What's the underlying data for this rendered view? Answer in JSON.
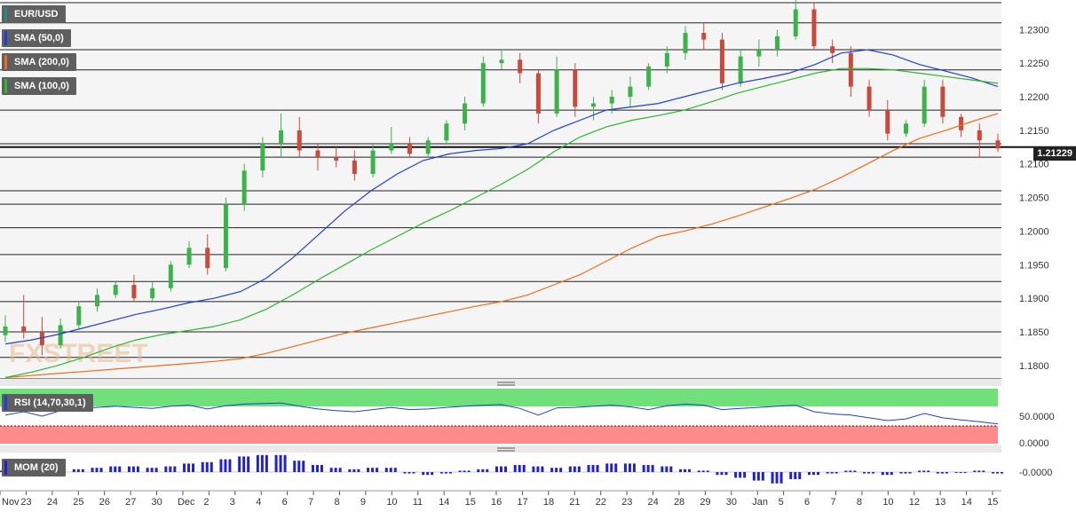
{
  "chart_data": [
    {
      "type": "line",
      "title": "EUR/USD",
      "subtitle": "",
      "series": [
        {
          "name": "SMA (50,0)",
          "color": "#1f3fd8",
          "values": [
            1.1832,
            1.1838,
            1.1846,
            1.1856,
            1.1866,
            1.1876,
            1.1884,
            1.1893,
            1.19,
            1.191,
            1.193,
            1.196,
            1.1995,
            1.203,
            1.206,
            1.2085,
            1.2105,
            1.2115,
            1.212,
            1.2123,
            1.213,
            1.215,
            1.2165,
            1.218,
            1.2185,
            1.219,
            1.22,
            1.221,
            1.222,
            1.2227,
            1.2235,
            1.2248,
            1.2265,
            1.227,
            1.2262,
            1.2248,
            1.2238,
            1.2228,
            1.2215
          ]
        },
        {
          "name": "SMA (200,0)",
          "color": "#ef6c1a",
          "values": [
            1.1782,
            1.1785,
            1.1788,
            1.1791,
            1.1794,
            1.1797,
            1.18,
            1.1803,
            1.1806,
            1.181,
            1.1818,
            1.1828,
            1.1838,
            1.1848,
            1.1856,
            1.1864,
            1.1872,
            1.188,
            1.1888,
            1.1895,
            1.1905,
            1.192,
            1.1935,
            1.1955,
            1.1975,
            1.1992,
            1.2,
            1.201,
            1.2022,
            1.2035,
            1.2048,
            1.2062,
            1.208,
            1.21,
            1.212,
            1.2138,
            1.215,
            1.2163,
            1.2175
          ]
        },
        {
          "name": "SMA (100,0)",
          "color": "#2fb52f",
          "values": [
            1.1782,
            1.179,
            1.18,
            1.1812,
            1.1826,
            1.1838,
            1.1846,
            1.1852,
            1.1858,
            1.1868,
            1.1884,
            1.1905,
            1.1928,
            1.195,
            1.1972,
            1.1992,
            1.2012,
            1.203,
            1.205,
            1.207,
            1.2092,
            1.2118,
            1.214,
            1.2155,
            1.2165,
            1.2172,
            1.218,
            1.2192,
            1.2205,
            1.2215,
            1.2225,
            1.2235,
            1.2242,
            1.2242,
            1.224,
            1.2235,
            1.223,
            1.2225,
            1.222
          ]
        }
      ],
      "candles": [
        [
          1.1845,
          1.1875,
          1.1835,
          1.1858
        ],
        [
          1.1858,
          1.1905,
          1.184,
          1.185
        ],
        [
          1.185,
          1.1872,
          1.1815,
          1.183
        ],
        [
          1.183,
          1.187,
          1.1825,
          1.186
        ],
        [
          1.186,
          1.1895,
          1.1855,
          1.1888
        ],
        [
          1.1888,
          1.1915,
          1.188,
          1.1905
        ],
        [
          1.1905,
          1.1925,
          1.19,
          1.192
        ],
        [
          1.192,
          1.1935,
          1.1895,
          1.19
        ],
        [
          1.19,
          1.1925,
          1.1895,
          1.1915
        ],
        [
          1.1915,
          1.1955,
          1.191,
          1.195
        ],
        [
          1.195,
          1.1985,
          1.1945,
          1.1975
        ],
        [
          1.1975,
          1.1995,
          1.1935,
          1.1945
        ],
        [
          1.1945,
          1.205,
          1.194,
          1.204
        ],
        [
          1.204,
          1.21,
          1.203,
          1.209
        ],
        [
          1.209,
          1.214,
          1.208,
          1.213
        ],
        [
          1.213,
          1.2175,
          1.211,
          1.215
        ],
        [
          1.215,
          1.217,
          1.211,
          1.212
        ],
        [
          1.212,
          1.213,
          1.209,
          1.211
        ],
        [
          1.211,
          1.2125,
          1.2095,
          1.2105
        ],
        [
          1.2105,
          1.212,
          1.2075,
          1.2085
        ],
        [
          1.2085,
          1.213,
          1.208,
          1.212
        ],
        [
          1.212,
          1.2155,
          1.2115,
          1.213
        ],
        [
          1.213,
          1.214,
          1.211,
          1.2115
        ],
        [
          1.2115,
          1.214,
          1.211,
          1.2135
        ],
        [
          1.2135,
          1.2165,
          1.213,
          1.216
        ],
        [
          1.216,
          1.22,
          1.215,
          1.219
        ],
        [
          1.219,
          1.226,
          1.2185,
          1.225
        ],
        [
          1.225,
          1.227,
          1.224,
          1.2255
        ],
        [
          1.2255,
          1.2265,
          1.222,
          1.2235
        ],
        [
          1.2235,
          1.224,
          1.216,
          1.2175
        ],
        [
          1.2175,
          1.226,
          1.217,
          1.224
        ],
        [
          1.224,
          1.225,
          1.217,
          1.2185
        ],
        [
          1.2185,
          1.22,
          1.2165,
          1.219
        ],
        [
          1.219,
          1.221,
          1.2175,
          1.22
        ],
        [
          1.22,
          1.223,
          1.2185,
          1.2215
        ],
        [
          1.2215,
          1.225,
          1.221,
          1.2245
        ],
        [
          1.2245,
          1.2275,
          1.2235,
          1.2265
        ],
        [
          1.2265,
          1.2305,
          1.2255,
          1.2295
        ],
        [
          1.2295,
          1.231,
          1.227,
          1.2285
        ],
        [
          1.2285,
          1.2295,
          1.221,
          1.222
        ],
        [
          1.222,
          1.227,
          1.2215,
          1.226
        ],
        [
          1.226,
          1.2285,
          1.2245,
          1.227
        ],
        [
          1.227,
          1.23,
          1.226,
          1.229
        ],
        [
          1.229,
          1.2345,
          1.2285,
          1.233
        ],
        [
          1.233,
          1.234,
          1.227,
          1.2275
        ],
        [
          1.2275,
          1.2285,
          1.225,
          1.2265
        ],
        [
          1.2265,
          1.2275,
          1.22,
          1.2215
        ],
        [
          1.2215,
          1.2225,
          1.217,
          1.218
        ],
        [
          1.218,
          1.2195,
          1.2135,
          1.2145
        ],
        [
          1.2145,
          1.2165,
          1.214,
          1.216
        ],
        [
          1.216,
          1.2225,
          1.2155,
          1.2215
        ],
        [
          1.2215,
          1.2225,
          1.216,
          1.217
        ],
        [
          1.217,
          1.2175,
          1.214,
          1.215
        ],
        [
          1.215,
          1.216,
          1.211,
          1.2135
        ],
        [
          1.2135,
          1.2145,
          1.2118,
          1.2123
        ]
      ],
      "x_ticks": [
        "Nov",
        "23",
        "24",
        "25",
        "26",
        "27",
        "30",
        "Dec",
        "2",
        "3",
        "4",
        "6",
        "7",
        "8",
        "9",
        "10",
        "11",
        "14",
        "15",
        "16",
        "17",
        "18",
        "21",
        "22",
        "23",
        "24",
        "28",
        "29",
        "30",
        "Jan",
        "5",
        "6",
        "7",
        "8",
        "10",
        "12",
        "13",
        "14",
        "15"
      ],
      "y_ticks": [
        "1.2300",
        "1.2250",
        "1.2200",
        "1.2150",
        "1.2100",
        "1.2050",
        "1.2000",
        "1.1950",
        "1.1900",
        "1.1850",
        "1.1800"
      ],
      "ylim": [
        1.178,
        1.234
      ],
      "current_price": "1.21229",
      "xlabel": "",
      "ylabel": ""
    },
    {
      "type": "line",
      "title": "RSI (14,70,30,1)",
      "y_ticks": [
        "50.0000",
        "0.0000"
      ],
      "ylim": [
        0,
        100
      ],
      "series": [
        {
          "name": "RSI (14,70,30,1)",
          "color": "#1f3fd8",
          "values": [
            52,
            58,
            50,
            60,
            64,
            66,
            68,
            66,
            64,
            68,
            70,
            63,
            69,
            72,
            73,
            74,
            68,
            63,
            60,
            58,
            62,
            66,
            62,
            63,
            66,
            68,
            70,
            71,
            64,
            52,
            65,
            66,
            68,
            70,
            67,
            62,
            69,
            72,
            70,
            62,
            64,
            66,
            68,
            70,
            58,
            54,
            52,
            47,
            42,
            45,
            55,
            47,
            43,
            40,
            36
          ]
        }
      ]
    },
    {
      "type": "bar",
      "title": "MOM (20)",
      "y_ticks": [
        "-0.0000"
      ],
      "series": [
        {
          "name": "MOM (20)",
          "color": "#2222cc",
          "values": [
            1,
            2,
            3,
            3,
            2,
            3,
            4,
            4,
            3,
            4,
            6,
            7,
            9,
            11,
            12,
            12,
            8,
            5,
            3,
            2,
            3,
            3,
            -1,
            -2,
            -1,
            1,
            2,
            4,
            5,
            4,
            3,
            4,
            5,
            6,
            6,
            5,
            4,
            2,
            1,
            -2,
            -4,
            -6,
            -8,
            -5,
            -2,
            -1,
            1,
            -1,
            -2,
            -1,
            1,
            -1,
            0,
            1,
            -1
          ]
        }
      ]
    }
  ],
  "legend": {
    "symbol": "EUR/USD",
    "sma50": "SMA (50,0)",
    "sma200": "SMA (200,0)",
    "sma100": "SMA (100,0)",
    "rsi": "RSI (14,70,30,1)",
    "mom": "MOM (20)"
  },
  "colors": {
    "sma50": "#1f3fd8",
    "sma200": "#ef6c1a",
    "sma100": "#2fb52f",
    "up": "#3bb24a",
    "down": "#c94a3c",
    "rsi_overbought": "#6fe07a",
    "rsi_oversold": "#ff8a8a",
    "mom_bar": "#2222cc"
  },
  "watermark": "FXSTREET"
}
